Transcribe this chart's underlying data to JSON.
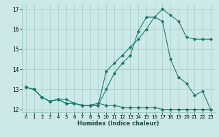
{
  "xlabel": "Humidex (Indice chaleur)",
  "bg_color": "#cce8e8",
  "grid_color": "#aacfcf",
  "line_color": "#1a7a6e",
  "xlim": [
    -0.5,
    23.5
  ],
  "ylim": [
    11.85,
    17.25
  ],
  "yticks": [
    12,
    13,
    14,
    15,
    16,
    17
  ],
  "xticks": [
    0,
    1,
    2,
    3,
    4,
    5,
    6,
    7,
    8,
    9,
    10,
    11,
    12,
    13,
    14,
    15,
    16,
    17,
    18,
    19,
    20,
    21,
    22,
    23
  ],
  "series1_x": [
    0,
    1,
    2,
    3,
    4,
    5,
    6,
    7,
    8,
    9,
    10,
    11,
    12,
    13,
    14,
    15,
    16,
    17,
    18,
    19,
    20,
    21,
    22,
    23
  ],
  "series1_y": [
    13.1,
    13.0,
    12.6,
    12.4,
    12.5,
    12.5,
    12.3,
    12.2,
    12.2,
    12.3,
    12.2,
    12.2,
    12.1,
    12.1,
    12.1,
    12.1,
    12.1,
    12.0,
    12.0,
    12.0,
    12.0,
    12.0,
    12.0,
    12.0
  ],
  "series2_x": [
    0,
    1,
    2,
    3,
    4,
    5,
    6,
    7,
    8,
    9,
    10,
    11,
    12,
    13,
    14,
    15,
    16,
    17,
    18,
    19,
    20,
    21,
    22,
    23
  ],
  "series2_y": [
    13.1,
    13.0,
    12.6,
    12.4,
    12.5,
    12.3,
    12.3,
    12.2,
    12.2,
    12.2,
    13.9,
    14.3,
    14.7,
    15.1,
    15.5,
    16.0,
    16.6,
    17.0,
    16.7,
    16.4,
    15.6,
    15.5,
    15.5,
    15.5
  ],
  "series3_x": [
    0,
    1,
    2,
    3,
    4,
    5,
    6,
    7,
    8,
    9,
    10,
    11,
    12,
    13,
    14,
    15,
    16,
    17,
    18,
    19,
    20,
    21,
    22,
    23
  ],
  "series3_y": [
    13.1,
    13.0,
    12.6,
    12.4,
    12.5,
    12.3,
    12.3,
    12.2,
    12.2,
    12.2,
    13.0,
    13.8,
    14.3,
    14.7,
    15.9,
    16.6,
    16.6,
    16.4,
    14.5,
    13.6,
    13.3,
    12.7,
    12.9,
    12.0
  ]
}
